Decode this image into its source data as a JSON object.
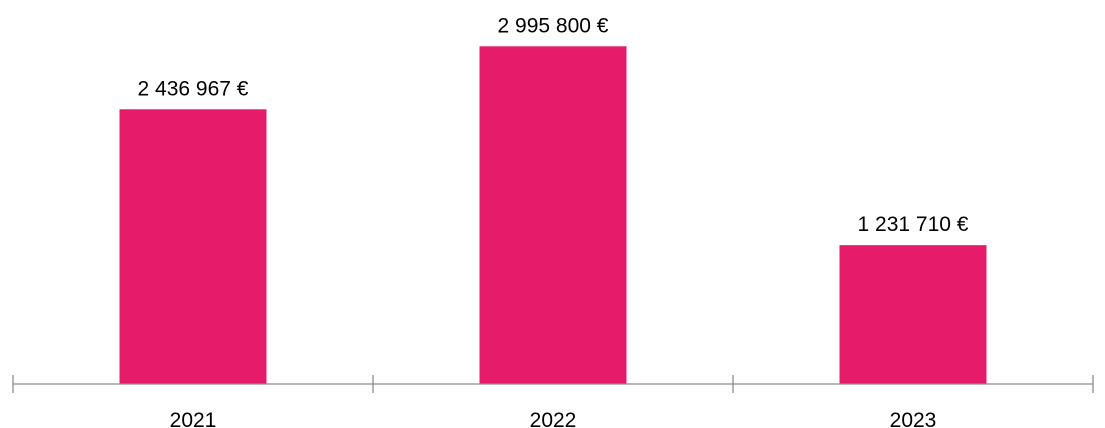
{
  "chart_data": {
    "type": "bar",
    "categories": [
      "2021",
      "2022",
      "2023"
    ],
    "series": [
      {
        "values": [
          2436967,
          2995800,
          1231710
        ],
        "labels": [
          "2 436 967 €",
          "2 995 800 €",
          "1 231 710 €"
        ]
      }
    ],
    "ylim": [
      0,
      3300000
    ],
    "grid": false,
    "legend": "none",
    "bar_color": "#E61C6B",
    "axis_color": "#8C8C8C"
  }
}
